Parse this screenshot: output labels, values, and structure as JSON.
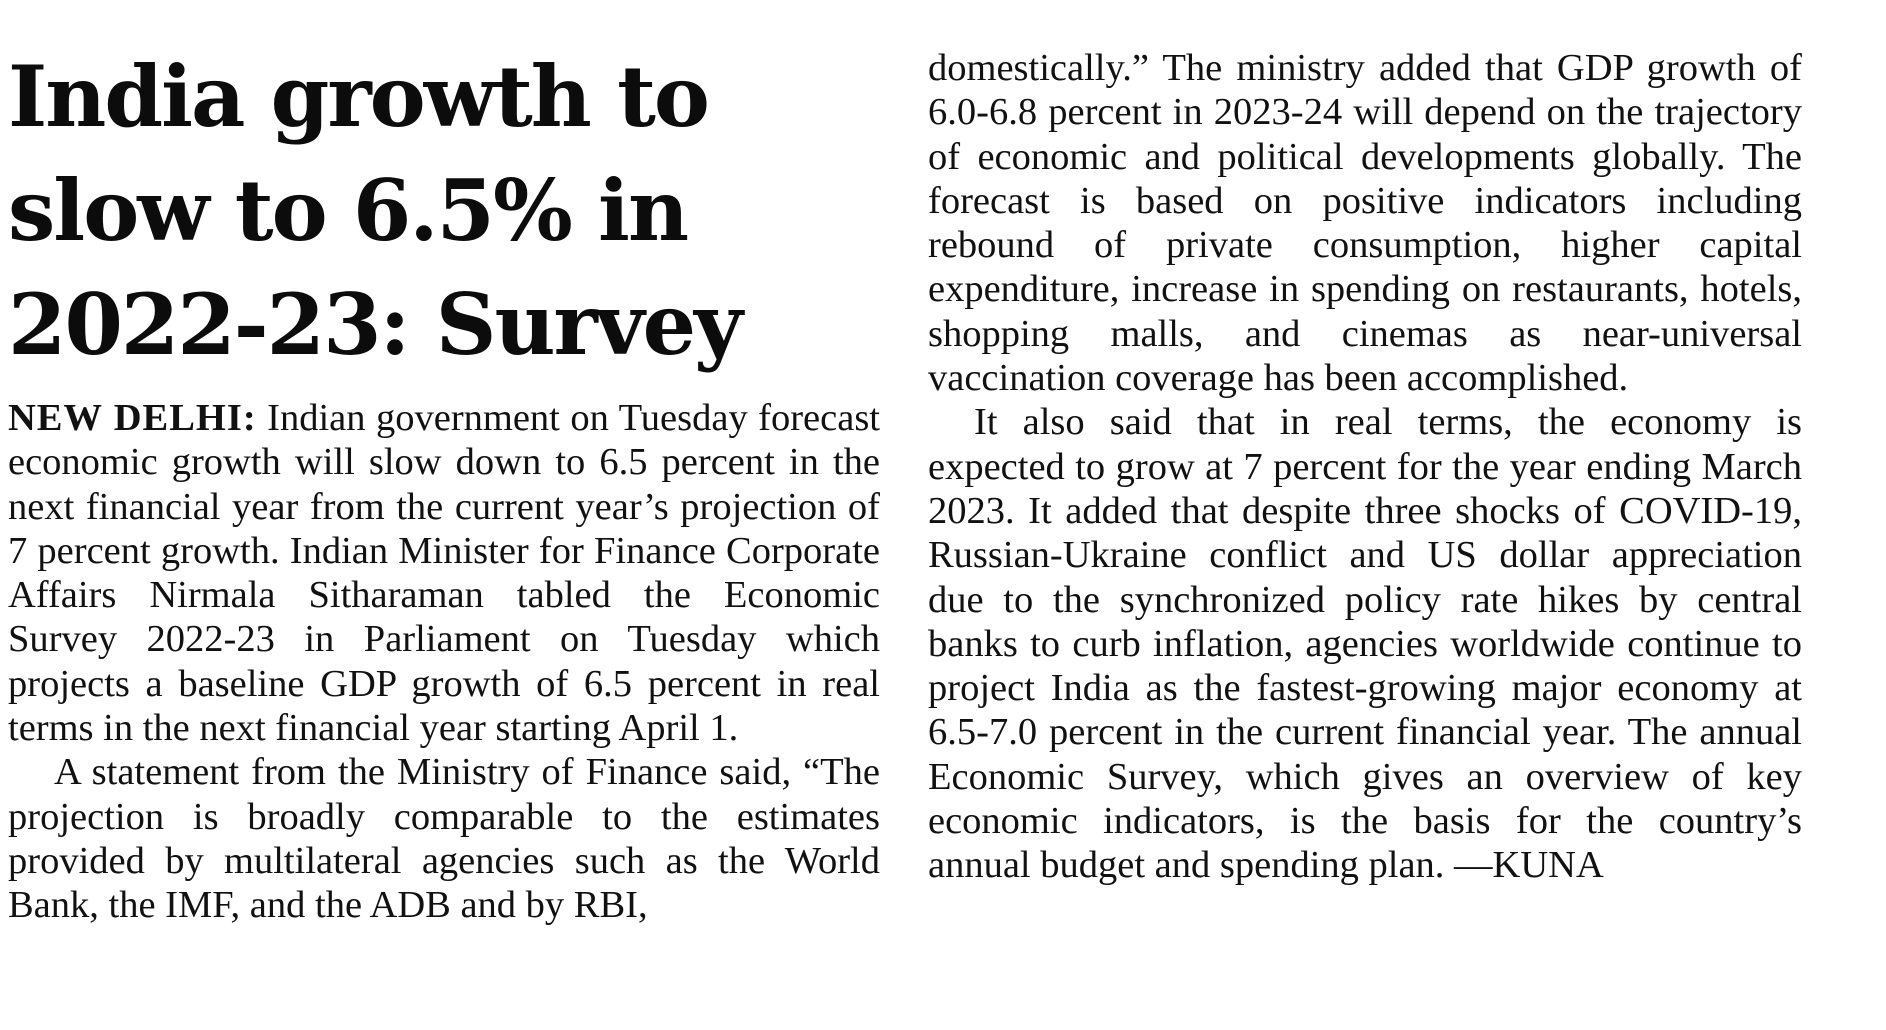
{
  "article": {
    "headline": "India growth to slow to 6.5% in 2022-23: Survey",
    "dateline": "NEW DELHI:",
    "paragraphs": [
      "Indian government on Tuesday forecast economic growth will slow down to 6.5 percent in the next financial year from the current year’s projection of 7 percent growth. Indian Minister for Finance Corporate Affairs Nirmala Sitharaman tabled the Economic Survey 2022-23 in Parliament on Tuesday which projects a baseline GDP growth of 6.5 percent in real terms in the next financial year starting April 1.",
      "A statement from the Ministry of Finance said, “The projection is broadly comparable to the esti­mates provided by multilateral agencies such as the World Bank, the IMF, and the ADB and by RBI,",
      "domestically.” The ministry added that GDP growth of 6.0-6.8 percent in 2023-24 will depend on the trajectory of economic and political developments globally. The forecast is based on positive indica­tors including rebound of private consumption, higher capital expenditure, increase in spending on restaurants, hotels, shopping malls, and cinemas as near-universal vaccination coverage has been accomplished.",
      "It also said that in real terms, the economy is expected to grow at 7 percent for the year ending March 2023. It added that despite three shocks of COVID-19, Russian-Ukraine conflict and US dollar appreciation due to the synchronized policy rate hikes by central banks to curb inflation, agencies worldwide continue to project India as the fastest-growing major economy at 6.5-7.0 percent in the current financial year. The annual Economic Survey, which gives an overview of key economic indica­tors, is the basis for the country’s annual budget and spending plan. —KUNA"
    ]
  }
}
